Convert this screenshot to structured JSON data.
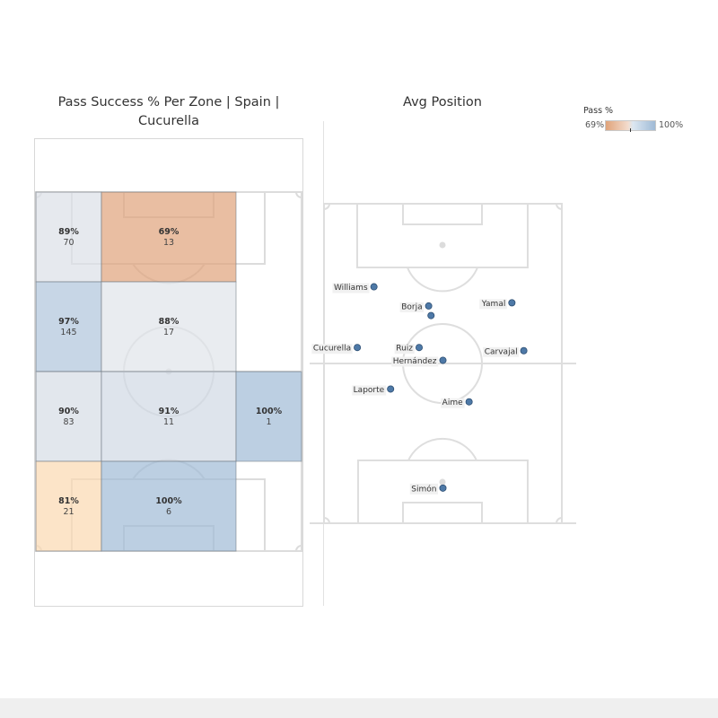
{
  "titles": {
    "left": "Pass Success % Per Zone | Spain | Cucurella",
    "right": "Avg Position"
  },
  "legend": {
    "title": "Pass %",
    "min_label": "69%",
    "max_label": "100%",
    "min_value": 69,
    "max_value": 100
  },
  "colors": {
    "low": "#e0a37a",
    "mid": "#f3f0ee",
    "high": "#9fbad6",
    "pitch_line": "#dcdcdc",
    "dot": "#4e79a7"
  },
  "chart_data": [
    {
      "type": "heatmap",
      "title": "Pass Success % Per Zone | Spain | Cucurella",
      "columns": 4,
      "rows": 4,
      "cells": [
        {
          "col": 0,
          "row": 0,
          "pct_label": "89%",
          "pct": 89,
          "count": "70"
        },
        {
          "col": 1,
          "row": 0,
          "pct_label": "69%",
          "pct": 69,
          "count": "13"
        },
        {
          "col": 0,
          "row": 1,
          "pct_label": "97%",
          "pct": 97,
          "count": "145"
        },
        {
          "col": 1,
          "row": 1,
          "pct_label": "88%",
          "pct": 88,
          "count": "17"
        },
        {
          "col": 0,
          "row": 2,
          "pct_label": "90%",
          "pct": 90,
          "count": "83"
        },
        {
          "col": 1,
          "row": 2,
          "pct_label": "91%",
          "pct": 91,
          "count": "11"
        },
        {
          "col": 2,
          "row": 2,
          "pct_label": "100%",
          "pct": 100,
          "count": "1"
        },
        {
          "col": 0,
          "row": 3,
          "pct_label": "81%",
          "pct": 81,
          "count": "21"
        },
        {
          "col": 1,
          "row": 3,
          "pct_label": "100%",
          "pct": 100,
          "count": "6"
        }
      ]
    },
    {
      "type": "scatter",
      "title": "Avg Position",
      "xlim": [
        0,
        100
      ],
      "ylim": [
        0,
        100
      ],
      "points": [
        {
          "name": "Williams",
          "x": 21,
          "y": 74,
          "label_side": "left"
        },
        {
          "name": "Borja",
          "x": 44,
          "y": 68,
          "label_side": "left"
        },
        {
          "name": "",
          "x": 45,
          "y": 65,
          "label_side": "left"
        },
        {
          "name": "Yamal",
          "x": 79,
          "y": 69,
          "label_side": "left"
        },
        {
          "name": "Cucurella",
          "x": 14,
          "y": 55,
          "label_side": "left"
        },
        {
          "name": "Ruiz",
          "x": 40,
          "y": 55,
          "label_side": "left"
        },
        {
          "name": "Carvajal",
          "x": 84,
          "y": 54,
          "label_side": "left"
        },
        {
          "name": "Hernández",
          "x": 50,
          "y": 51,
          "label_side": "left"
        },
        {
          "name": "Laporte",
          "x": 28,
          "y": 42,
          "label_side": "left"
        },
        {
          "name": "Aime",
          "x": 61,
          "y": 38,
          "label_side": "left"
        },
        {
          "name": "Simón",
          "x": 50,
          "y": 11,
          "label_side": "left"
        }
      ]
    }
  ]
}
